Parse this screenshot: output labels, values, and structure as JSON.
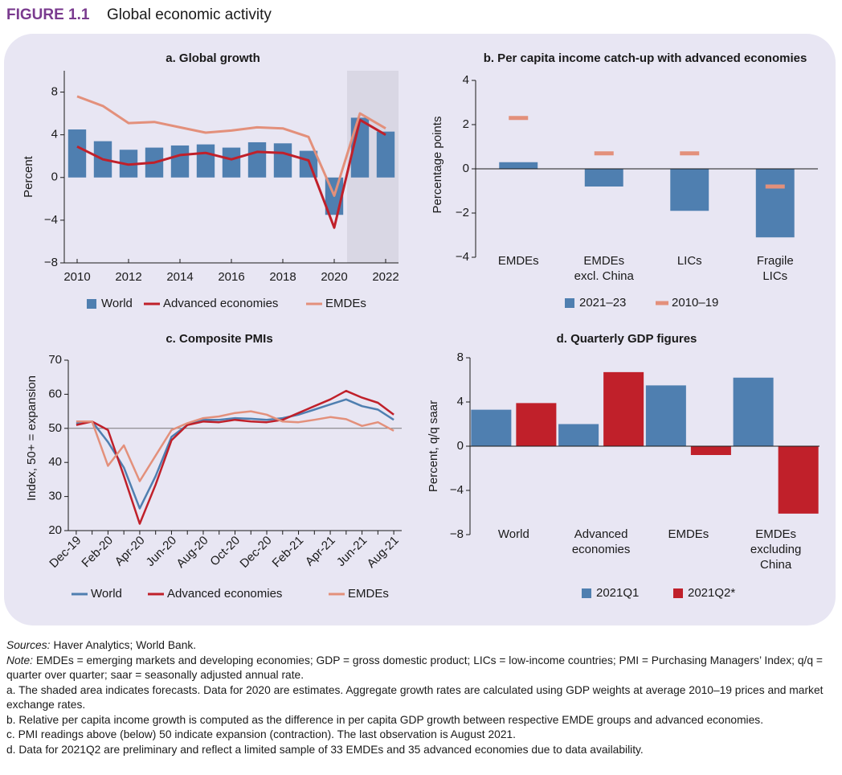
{
  "figure_label": "FIGURE 1.1",
  "title": "Global economic activity",
  "chart_data": [
    {
      "type": "combo",
      "title": "a. Global growth",
      "y_label": "Percent",
      "x": [
        2010,
        2011,
        2012,
        2013,
        2014,
        2015,
        2016,
        2017,
        2018,
        2019,
        2020,
        2021,
        2022
      ],
      "xlim": [
        2009.5,
        2022.5
      ],
      "xticks": [
        2010,
        2012,
        2014,
        2016,
        2018,
        2020,
        2022
      ],
      "ylim": [
        -8,
        10
      ],
      "yticks": [
        {
          "value": -8,
          "label": "−8"
        },
        {
          "value": -4,
          "label": "−4"
        },
        0,
        4,
        8
      ],
      "shaded_x": [
        2020.5,
        2022.5
      ],
      "series": [
        {
          "name": "World",
          "kind": "bar",
          "color": "#4f7fb0",
          "values": [
            4.5,
            3.4,
            2.6,
            2.8,
            3.0,
            3.1,
            2.8,
            3.3,
            3.2,
            2.5,
            -3.5,
            5.6,
            4.3
          ]
        },
        {
          "name": "Advanced economies",
          "kind": "line",
          "color": "#c0202a",
          "values": [
            2.9,
            1.7,
            1.2,
            1.4,
            2.1,
            2.3,
            1.7,
            2.4,
            2.3,
            1.6,
            -4.7,
            5.4,
            4.0
          ]
        },
        {
          "name": "EMDEs",
          "kind": "line",
          "color": "#e3907b",
          "values": [
            7.6,
            6.7,
            5.1,
            5.2,
            4.7,
            4.2,
            4.4,
            4.7,
            4.6,
            3.8,
            -1.7,
            6.0,
            4.6
          ]
        }
      ]
    },
    {
      "type": "bar",
      "title": "b. Per capita income catch-up with advanced economies",
      "y_label": "Percentage points",
      "categories": [
        "EMDEs",
        "EMDEs\nexcl. China",
        "LICs",
        "Fragile\nLICs"
      ],
      "ylim": [
        -4,
        4
      ],
      "yticks": [
        {
          "value": -4,
          "label": "−4"
        },
        {
          "value": -2,
          "label": "−2"
        },
        0,
        2,
        4
      ],
      "zero_line": true,
      "series": [
        {
          "name": "2021–23",
          "kind": "bar",
          "color": "#4f7fb0",
          "values": [
            0.3,
            -0.8,
            -1.9,
            -3.1
          ]
        },
        {
          "name": "2010–19",
          "kind": "marker",
          "color": "#e3907b",
          "values": [
            2.3,
            0.7,
            0.7,
            -0.8
          ]
        }
      ]
    },
    {
      "type": "line",
      "title": "c. Composite PMIs",
      "y_label": "Index, 50+ = expansion",
      "categories": [
        "Dec-19",
        null,
        "Feb-20",
        null,
        "Apr-20",
        null,
        "Jun-20",
        null,
        "Aug-20",
        null,
        "Oct-20",
        null,
        "Dec-20",
        null,
        "Feb-21",
        null,
        "Apr-21",
        null,
        "Jun-21",
        null,
        "Aug-21"
      ],
      "ylim": [
        20,
        70
      ],
      "yticks": [
        20,
        30,
        40,
        50,
        60,
        70
      ],
      "reference_line": 50,
      "series": [
        {
          "name": "World",
          "kind": "line",
          "color": "#4f7fb0",
          "values": [
            51.5,
            52,
            46,
            38.5,
            26.5,
            36,
            47.5,
            51,
            52.5,
            52.5,
            53,
            52.8,
            52.5,
            53,
            54,
            55.5,
            57,
            58.5,
            56.5,
            55.5,
            52.5
          ]
        },
        {
          "name": "Advanced economies",
          "kind": "line",
          "color": "#c0202a",
          "values": [
            51,
            52,
            49.5,
            36,
            22,
            33.5,
            46.5,
            51,
            52,
            51.8,
            52.5,
            52,
            51.8,
            52.5,
            54.5,
            56.5,
            58.5,
            61,
            59,
            57.5,
            54
          ]
        },
        {
          "name": "EMDEs",
          "kind": "line",
          "color": "#e3907b",
          "values": [
            52,
            52,
            39,
            45,
            34.5,
            42,
            49.5,
            51.5,
            53,
            53.5,
            54.5,
            55,
            54,
            52,
            51.8,
            52.5,
            53.3,
            52.7,
            50.7,
            51.8,
            49.3
          ]
        }
      ]
    },
    {
      "type": "bar",
      "title": "d. Quarterly GDP figures",
      "y_label": "Percent, q/q saar",
      "categories": [
        "World",
        "Advanced\neconomies",
        "EMDEs",
        "EMDEs\nexcluding\nChina"
      ],
      "ylim": [
        -8,
        8
      ],
      "yticks": [
        {
          "value": -8,
          "label": "−8"
        },
        {
          "value": -4,
          "label": "−4"
        },
        0,
        4,
        8
      ],
      "zero_line": true,
      "series": [
        {
          "name": "2021Q1",
          "kind": "bar",
          "color": "#4f7fb0",
          "values": [
            3.3,
            2.0,
            5.5,
            6.2
          ]
        },
        {
          "name": "2021Q2*",
          "kind": "bar",
          "color": "#c0202a",
          "values": [
            3.9,
            6.7,
            -0.8,
            -6.1
          ]
        }
      ]
    }
  ],
  "notes": {
    "sources": {
      "label": "Sources:",
      "text": "Haver Analytics; World Bank."
    },
    "note": {
      "label": "Note:",
      "text": "EMDEs = emerging markets and developing economies; GDP = gross domestic product; LICs = low-income countries; PMI = Purchasing Managers’ Index; q/q = quarter over quarter; saar = seasonally adjusted annual rate."
    },
    "footnotes": [
      "a. The shaded area indicates forecasts. Data for 2020 are estimates. Aggregate growth rates are calculated using GDP weights at average 2010–19 prices and market exchange rates.",
      "b. Relative per capita income growth is computed as the difference in per capita GDP growth between respective EMDE groups and advanced economies.",
      "c. PMI readings above (below) 50 indicate expansion (contraction). The last observation is August 2021.",
      "d. Data for 2021Q2 are preliminary and reflect a limited sample of 33 EMDEs and 35 advanced economies due to data availability."
    ]
  }
}
